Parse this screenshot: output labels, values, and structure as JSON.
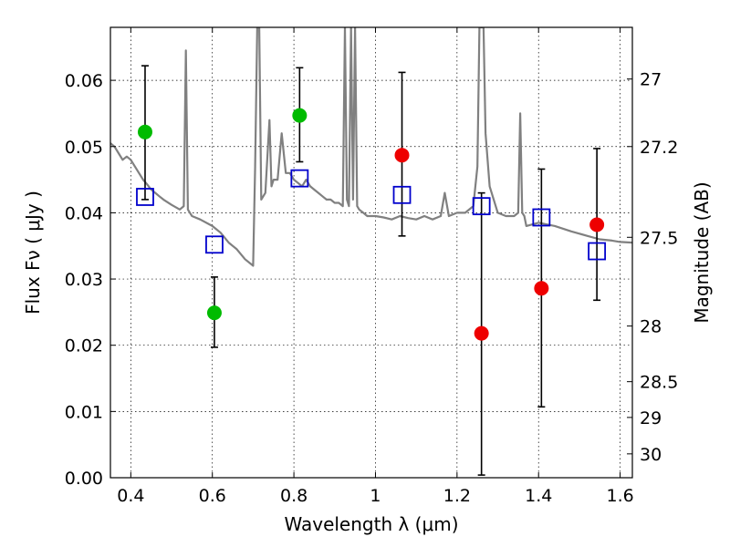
{
  "chart_data": {
    "type": "scatter",
    "title": "",
    "xlabel": "Wavelength  λ (μm)",
    "ylabel": "Flux  Fν  ( μJy )",
    "y2label": "Magnitude (AB)",
    "xlim": [
      0.35,
      1.63
    ],
    "ylim": [
      0.0,
      0.068
    ],
    "grid": true,
    "xticks": [
      0.4,
      0.6,
      0.8,
      1.0,
      1.2,
      1.4,
      1.6
    ],
    "xtick_labels": [
      "0.4",
      "0.6",
      "0.8",
      "1",
      "1.2",
      "1.4",
      "1.6"
    ],
    "yticks": [
      0.0,
      0.01,
      0.02,
      0.03,
      0.04,
      0.05,
      0.06
    ],
    "ytick_labels": [
      "0.00",
      "0.01",
      "0.02",
      "0.03",
      "0.04",
      "0.05",
      "0.06"
    ],
    "y2ticks": [
      {
        "flux": 0.0602,
        "label": "27"
      },
      {
        "flux": 0.05,
        "label": "27.2"
      },
      {
        "flux": 0.0363,
        "label": "27.5"
      },
      {
        "flux": 0.0229,
        "label": "28"
      },
      {
        "flux": 0.0145,
        "label": "28.5"
      },
      {
        "flux": 0.0091,
        "label": "29"
      },
      {
        "flux": 0.0036,
        "label": "30"
      }
    ],
    "colors": {
      "model": "#808080",
      "green": "#00bb00",
      "red": "#ee0000",
      "box": "#0000cc",
      "error": "#000000"
    },
    "series": [
      {
        "style": "line",
        "color": "#808080",
        "x": [
          0.35,
          0.36,
          0.37,
          0.38,
          0.39,
          0.4,
          0.41,
          0.42,
          0.43,
          0.44,
          0.45,
          0.46,
          0.47,
          0.48,
          0.5,
          0.52,
          0.53,
          0.535,
          0.54,
          0.545,
          0.55,
          0.57,
          0.6,
          0.62,
          0.64,
          0.66,
          0.68,
          0.7,
          0.705,
          0.71,
          0.715,
          0.72,
          0.73,
          0.74,
          0.745,
          0.75,
          0.76,
          0.77,
          0.78,
          0.79,
          0.8,
          0.81,
          0.82,
          0.83,
          0.84,
          0.85,
          0.86,
          0.87,
          0.88,
          0.89,
          0.9,
          0.91,
          0.92,
          0.925,
          0.93,
          0.935,
          0.94,
          0.945,
          0.95,
          0.955,
          0.96,
          0.97,
          0.98,
          1.0,
          1.02,
          1.04,
          1.06,
          1.08,
          1.1,
          1.12,
          1.14,
          1.16,
          1.17,
          1.18,
          1.2,
          1.22,
          1.24,
          1.25,
          1.255,
          1.26,
          1.265,
          1.27,
          1.28,
          1.3,
          1.32,
          1.34,
          1.35,
          1.355,
          1.36,
          1.365,
          1.37,
          1.4,
          1.44,
          1.48,
          1.52,
          1.55,
          1.58,
          1.6,
          1.63
        ],
        "y": [
          0.0505,
          0.05,
          0.049,
          0.048,
          0.0485,
          0.048,
          0.047,
          0.046,
          0.045,
          0.0443,
          0.0435,
          0.043,
          0.0425,
          0.042,
          0.0412,
          0.0405,
          0.041,
          0.0645,
          0.0405,
          0.04,
          0.0395,
          0.039,
          0.038,
          0.037,
          0.0355,
          0.0345,
          0.033,
          0.032,
          0.047,
          0.068,
          0.068,
          0.042,
          0.043,
          0.054,
          0.044,
          0.045,
          0.045,
          0.052,
          0.046,
          0.046,
          0.045,
          0.0445,
          0.044,
          0.045,
          0.044,
          0.0435,
          0.043,
          0.0425,
          0.042,
          0.042,
          0.0415,
          0.0415,
          0.041,
          0.068,
          0.042,
          0.041,
          0.068,
          0.042,
          0.068,
          0.041,
          0.0405,
          0.04,
          0.0395,
          0.0395,
          0.0393,
          0.039,
          0.0395,
          0.0392,
          0.039,
          0.0395,
          0.039,
          0.0395,
          0.043,
          0.0395,
          0.04,
          0.04,
          0.041,
          0.047,
          0.068,
          0.068,
          0.068,
          0.052,
          0.044,
          0.04,
          0.0395,
          0.0395,
          0.04,
          0.055,
          0.04,
          0.0395,
          0.038,
          0.0385,
          0.038,
          0.0372,
          0.0365,
          0.036,
          0.0358,
          0.0356,
          0.0355
        ]
      },
      {
        "style": "circle",
        "color": "#00bb00",
        "points": [
          {
            "x": 0.435,
            "y": 0.0522,
            "err": [
              0.042,
              0.0622
            ]
          },
          {
            "x": 0.605,
            "y": 0.0249,
            "err": [
              0.0197,
              0.0303
            ]
          },
          {
            "x": 0.814,
            "y": 0.0547,
            "err": [
              0.0477,
              0.0619
            ]
          }
        ]
      },
      {
        "style": "circle",
        "color": "#ee0000",
        "points": [
          {
            "x": 1.065,
            "y": 0.0487,
            "err": [
              0.0365,
              0.0612
            ]
          },
          {
            "x": 1.26,
            "y": 0.0218,
            "err": [
              0.0004,
              0.043
            ]
          },
          {
            "x": 1.407,
            "y": 0.0286,
            "err": [
              0.0107,
              0.0466
            ]
          },
          {
            "x": 1.543,
            "y": 0.0382,
            "err": [
              0.0268,
              0.0497
            ]
          }
        ]
      },
      {
        "style": "open-square",
        "color": "#0000cc",
        "points": [
          {
            "x": 0.435,
            "y": 0.0424
          },
          {
            "x": 0.605,
            "y": 0.0352
          },
          {
            "x": 0.814,
            "y": 0.0452
          },
          {
            "x": 1.065,
            "y": 0.0427
          },
          {
            "x": 1.26,
            "y": 0.041
          },
          {
            "x": 1.407,
            "y": 0.0393
          },
          {
            "x": 1.543,
            "y": 0.0342
          }
        ]
      }
    ]
  }
}
